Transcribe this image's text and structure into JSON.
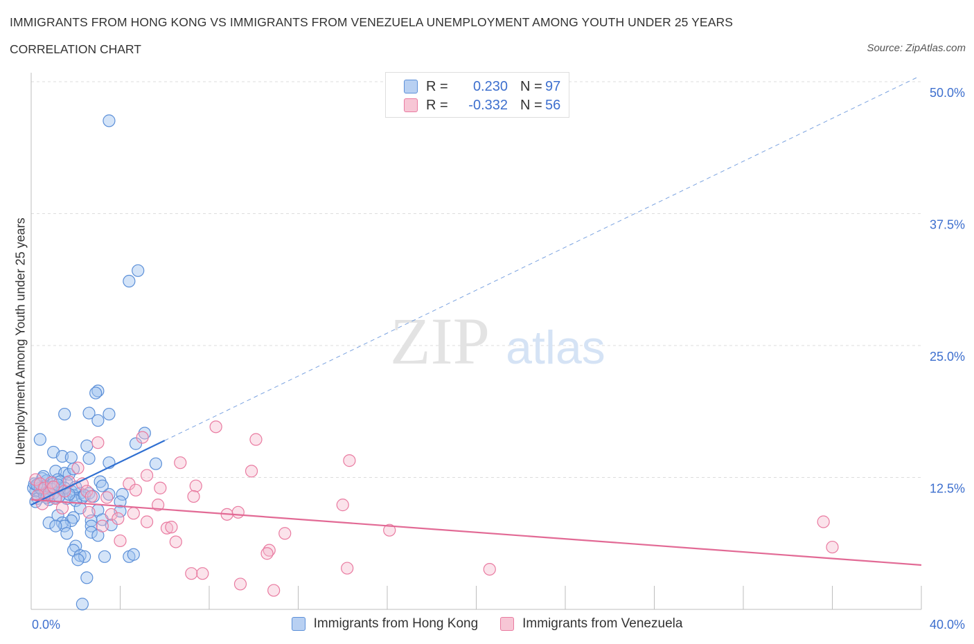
{
  "header": {
    "title": "IMMIGRANTS FROM HONG KONG VS IMMIGRANTS FROM VENEZUELA UNEMPLOYMENT AMONG YOUTH UNDER 25 YEARS",
    "subtitle": "CORRELATION CHART",
    "source": "Source: ZipAtlas.com"
  },
  "legend": {
    "r_label": "R =",
    "n_label": "N =",
    "series": [
      {
        "name": "Immigrants from Hong Kong",
        "r": "0.230",
        "n": "97",
        "color": "#5b8fd8",
        "fill": "#b8d0f2"
      },
      {
        "name": "Immigrants from Venezuela",
        "r": "-0.332",
        "n": "56",
        "color": "#e97aa0",
        "fill": "#f7c6d5"
      }
    ]
  },
  "watermark": {
    "zip": "ZIP",
    "atlas": "atlas"
  },
  "chart_data": {
    "type": "scatter",
    "title": "IMMIGRANTS FROM HONG KONG VS IMMIGRANTS FROM VENEZUELA UNEMPLOYMENT AMONG YOUTH UNDER 25 YEARS",
    "xlabel": "",
    "ylabel": "Unemployment Among Youth under 25 years",
    "xlim": [
      0,
      40
    ],
    "ylim": [
      0,
      50
    ],
    "x_tick_labels": [
      "0.0%",
      "40.0%"
    ],
    "y_ticks": [
      12.5,
      25,
      37.5,
      50
    ],
    "y_tick_labels": [
      "12.5%",
      "25.0%",
      "37.5%",
      "50.0%"
    ],
    "grid": true,
    "series": [
      {
        "name": "Immigrants from Hong Kong",
        "color": "#5b8fd8",
        "points": [
          [
            3.5,
            46.3
          ],
          [
            4.8,
            32.1
          ],
          [
            4.4,
            31.1
          ],
          [
            3.0,
            20.7
          ],
          [
            2.9,
            20.5
          ],
          [
            1.5,
            18.5
          ],
          [
            2.6,
            18.6
          ],
          [
            3.5,
            18.5
          ],
          [
            3.0,
            17.9
          ],
          [
            5.1,
            16.7
          ],
          [
            0.4,
            16.1
          ],
          [
            4.7,
            15.7
          ],
          [
            2.5,
            15.5
          ],
          [
            1.0,
            14.9
          ],
          [
            1.4,
            14.5
          ],
          [
            1.8,
            14.4
          ],
          [
            2.6,
            14.3
          ],
          [
            3.5,
            13.9
          ],
          [
            5.6,
            13.8
          ],
          [
            1.1,
            13.1
          ],
          [
            1.5,
            12.9
          ],
          [
            1.7,
            12.8
          ],
          [
            1.9,
            13.3
          ],
          [
            0.5,
            12.4
          ],
          [
            0.7,
            12.2
          ],
          [
            1.2,
            12.3
          ],
          [
            1.6,
            12.0
          ],
          [
            3.1,
            12.1
          ],
          [
            0.3,
            11.8
          ],
          [
            0.6,
            11.7
          ],
          [
            0.9,
            11.6
          ],
          [
            1.3,
            11.5
          ],
          [
            0.2,
            11.2
          ],
          [
            0.4,
            11.0
          ],
          [
            0.7,
            11.1
          ],
          [
            1.0,
            11.0
          ],
          [
            1.4,
            11.3
          ],
          [
            1.8,
            11.2
          ],
          [
            2.2,
            11.0
          ],
          [
            2.6,
            11.0
          ],
          [
            3.5,
            10.9
          ],
          [
            4.1,
            10.9
          ],
          [
            0.3,
            10.5
          ],
          [
            0.8,
            10.4
          ],
          [
            1.1,
            10.6
          ],
          [
            1.6,
            10.5
          ],
          [
            1.9,
            10.8
          ],
          [
            2.3,
            10.6
          ],
          [
            2.0,
            10.3
          ],
          [
            3.2,
            11.7
          ],
          [
            4.0,
            10.2
          ],
          [
            0.1,
            11.5
          ],
          [
            0.2,
            10.2
          ],
          [
            2.2,
            9.6
          ],
          [
            3.0,
            9.4
          ],
          [
            4.0,
            9.3
          ],
          [
            1.2,
            8.9
          ],
          [
            1.9,
            8.7
          ],
          [
            1.8,
            8.4
          ],
          [
            2.7,
            8.4
          ],
          [
            3.2,
            8.5
          ],
          [
            1.4,
            8.2
          ],
          [
            0.8,
            8.2
          ],
          [
            1.5,
            7.9
          ],
          [
            1.1,
            7.9
          ],
          [
            2.7,
            7.9
          ],
          [
            3.6,
            8.0
          ],
          [
            1.6,
            7.2
          ],
          [
            2.7,
            7.3
          ],
          [
            3.0,
            7.0
          ],
          [
            2.0,
            6.0
          ],
          [
            1.9,
            5.6
          ],
          [
            2.2,
            5.1
          ],
          [
            2.4,
            5.0
          ],
          [
            3.3,
            5.0
          ],
          [
            4.4,
            5.0
          ],
          [
            2.1,
            4.7
          ],
          [
            4.6,
            5.2
          ],
          [
            2.5,
            3.0
          ],
          [
            2.3,
            0.5
          ],
          [
            0.15,
            11.9
          ],
          [
            0.5,
            11.3
          ],
          [
            1.0,
            11.9
          ],
          [
            1.3,
            12.1
          ],
          [
            2.0,
            11.6
          ],
          [
            0.6,
            10.8
          ],
          [
            0.9,
            11.4
          ],
          [
            1.5,
            11.5
          ],
          [
            2.4,
            10.8
          ],
          [
            0.4,
            11.5
          ],
          [
            0.7,
            10.6
          ],
          [
            1.2,
            11.8
          ],
          [
            1.7,
            10.9
          ],
          [
            2.8,
            10.7
          ],
          [
            0.25,
            11.8
          ],
          [
            0.55,
            12.6
          ],
          [
            1.25,
            10.7
          ]
        ]
      },
      {
        "name": "Immigrants from Venezuela",
        "color": "#e97aa0",
        "points": [
          [
            0.2,
            12.3
          ],
          [
            0.4,
            11.9
          ],
          [
            0.6,
            11.5
          ],
          [
            0.8,
            11.0
          ],
          [
            1.1,
            10.5
          ],
          [
            0.3,
            10.8
          ],
          [
            0.9,
            12.0
          ],
          [
            1.5,
            11.2
          ],
          [
            1.7,
            12.1
          ],
          [
            2.3,
            11.9
          ],
          [
            2.5,
            11.2
          ],
          [
            2.7,
            10.7
          ],
          [
            3.4,
            10.6
          ],
          [
            0.5,
            10.0
          ],
          [
            1.4,
            9.6
          ],
          [
            2.1,
            13.4
          ],
          [
            3.0,
            15.8
          ],
          [
            5.0,
            16.3
          ],
          [
            5.2,
            12.7
          ],
          [
            4.4,
            11.9
          ],
          [
            4.7,
            11.3
          ],
          [
            5.8,
            11.5
          ],
          [
            6.7,
            13.9
          ],
          [
            8.3,
            17.3
          ],
          [
            9.9,
            13.1
          ],
          [
            10.1,
            16.1
          ],
          [
            14.3,
            14.1
          ],
          [
            7.4,
            11.7
          ],
          [
            7.3,
            10.7
          ],
          [
            5.7,
            9.9
          ],
          [
            4.6,
            9.1
          ],
          [
            3.6,
            9.0
          ],
          [
            2.6,
            9.2
          ],
          [
            5.2,
            8.3
          ],
          [
            3.9,
            8.6
          ],
          [
            3.2,
            7.9
          ],
          [
            6.1,
            7.7
          ],
          [
            6.3,
            7.8
          ],
          [
            6.5,
            6.4
          ],
          [
            4.0,
            6.5
          ],
          [
            8.8,
            9.0
          ],
          [
            9.3,
            9.2
          ],
          [
            10.7,
            5.6
          ],
          [
            10.6,
            5.3
          ],
          [
            11.4,
            7.2
          ],
          [
            14.0,
            9.9
          ],
          [
            16.1,
            7.5
          ],
          [
            14.2,
            3.9
          ],
          [
            7.2,
            3.4
          ],
          [
            7.7,
            3.4
          ],
          [
            9.4,
            2.4
          ],
          [
            10.9,
            1.8
          ],
          [
            20.6,
            3.8
          ],
          [
            35.6,
            8.3
          ],
          [
            36.0,
            5.9
          ],
          [
            1.0,
            11.6
          ]
        ]
      }
    ],
    "trendlines": [
      {
        "series": "Immigrants from Hong Kong",
        "x0": 0,
        "y0": 9.9,
        "x1": 6.0,
        "y1": 16.0,
        "style": "solid"
      },
      {
        "series": "Immigrants from Hong Kong",
        "x0": 6.0,
        "y0": 16.0,
        "x1": 39.9,
        "y1": 50.5,
        "style": "dashed"
      },
      {
        "series": "Immigrants from Venezuela",
        "x0": 0,
        "y0": 10.4,
        "x1": 40.0,
        "y1": 4.2,
        "style": "solid"
      }
    ]
  }
}
